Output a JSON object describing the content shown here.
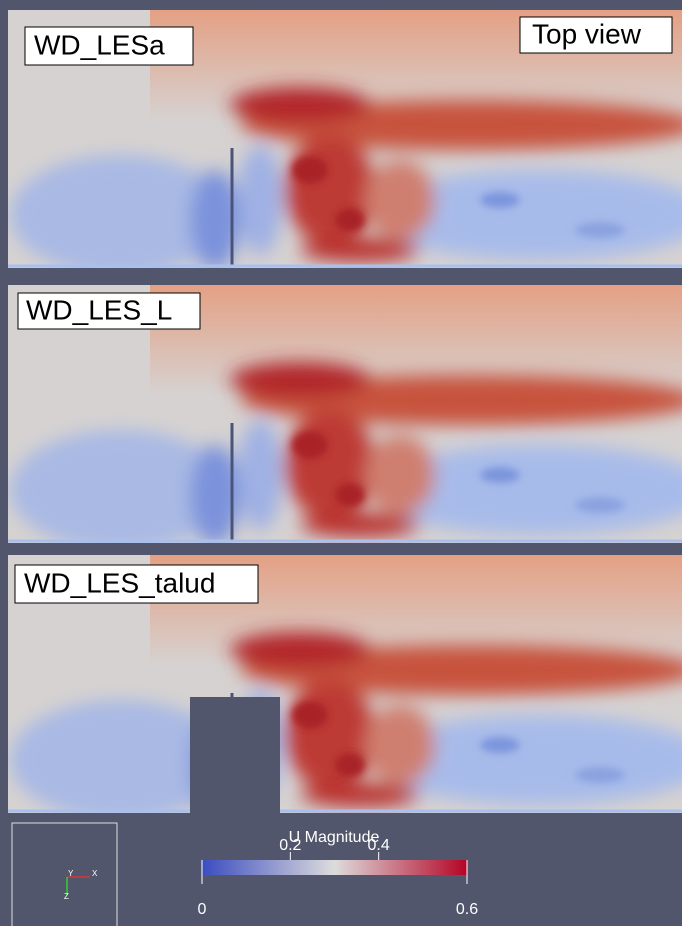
{
  "panels": [
    {
      "label": "WD_LESa"
    },
    {
      "label": "WD_LES_L"
    },
    {
      "label": "WD_LES_talud"
    }
  ],
  "view_label": "Top view",
  "colorbar": {
    "title": "U Magnitude",
    "range": [
      0,
      0.6
    ],
    "ticks": [
      0,
      0.2,
      0.4,
      0.6
    ]
  },
  "axes": {
    "x": "X",
    "y": "Y",
    "z": "Z"
  }
}
